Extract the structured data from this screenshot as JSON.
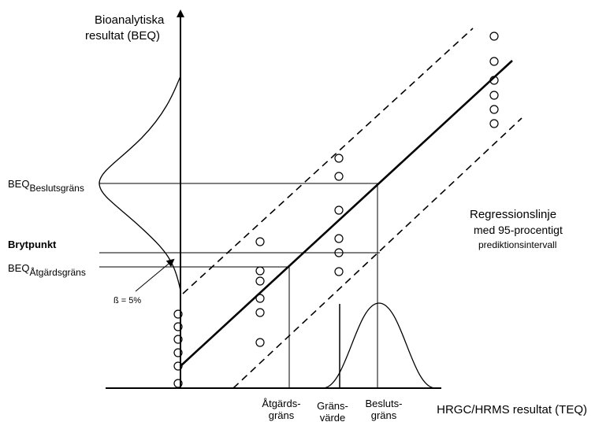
{
  "y_axis_title": {
    "line1": "Bioanalytiska",
    "line2": "resultat  (BEQ)"
  },
  "x_axis_title": "HRGC/HRMS resultat (TEQ)",
  "labels": {
    "beq_beslut_prefix": "BEQ",
    "beq_beslut_sub": "Beslutsgräns",
    "brytpunkt": "Brytpunkt",
    "beq_atgard_prefix": "BEQ",
    "beq_atgard_sub": "Åtgärdsgräns",
    "beta": "ß = 5%"
  },
  "x_markers": {
    "atgard": {
      "line1": "Åtgärds-",
      "line2": "gräns"
    },
    "gransvarde": {
      "line1": "Gräns-",
      "line2": "värde"
    },
    "beslut": {
      "line1": "Besluts-",
      "line2": "gräns"
    }
  },
  "legend": {
    "line1": "Regressionslinje",
    "line2": "med 95-procentigt",
    "line3": "prediktionsintervall"
  }
}
